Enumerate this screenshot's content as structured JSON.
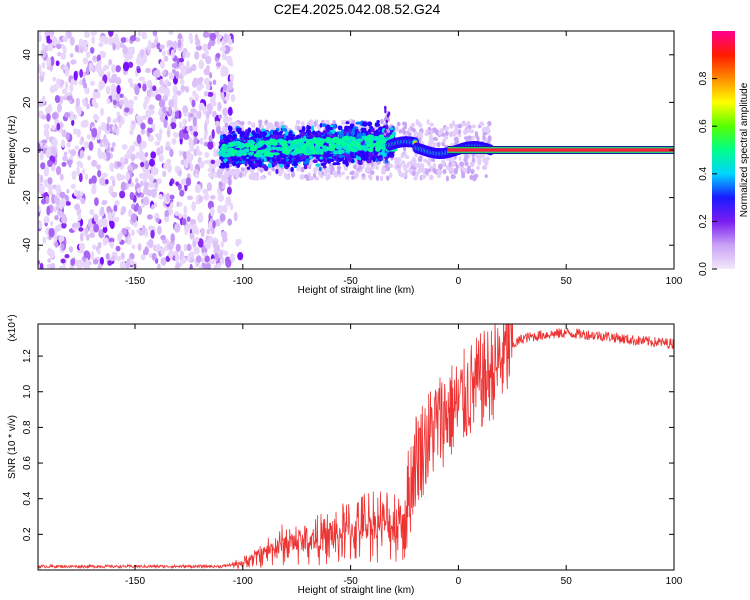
{
  "title": "C2E4.2025.042.08.52.G24",
  "chart_data": [
    {
      "type": "heatmap",
      "title": "C2E4.2025.042.08.52.G24",
      "xlabel": "Height of straight line (km)",
      "ylabel": "Frequency (Hz)",
      "xlim": [
        -195,
        100
      ],
      "ylim": [
        -50,
        50
      ],
      "x_ticks": [
        -150,
        -100,
        -50,
        0,
        50,
        100
      ],
      "y_ticks": [
        -40,
        -20,
        0,
        20,
        40
      ],
      "colorbar": {
        "label": "Normalized spectral amplitude",
        "range": [
          0.0,
          1.0
        ],
        "ticks": [
          "0.0",
          "0.2",
          "0.4",
          "0.6",
          "0.8"
        ],
        "colors": [
          "#f3e8fb",
          "#9b3cf0",
          "#3300ff",
          "#00c8ff",
          "#00ff66",
          "#b0ff00",
          "#ffff00",
          "#ff8800",
          "#ff0000",
          "#ff0088"
        ]
      },
      "features": [
        {
          "name": "broadband noise",
          "x_range": [
            -195,
            -105
          ],
          "freq_range": [
            -50,
            50
          ],
          "amplitude": "0.1-0.25"
        },
        {
          "name": "signal band",
          "x_range": [
            -110,
            -30
          ],
          "freq_center": 0,
          "bandwidth": 12,
          "amplitude": "0.3-0.5"
        },
        {
          "name": "carrier line",
          "x_range": [
            -25,
            100
          ],
          "freq_center": 0,
          "amplitude": "~0.9"
        }
      ]
    },
    {
      "type": "line",
      "xlabel": "Height of straight line (km)",
      "ylabel": "SNR (10 * v/v)",
      "y_multiplier": "(x10⁴)",
      "xlim": [
        -195,
        100
      ],
      "ylim": [
        0,
        1.38
      ],
      "x_ticks": [
        -150,
        -100,
        -50,
        0,
        50,
        100
      ],
      "y_ticks": [
        "0.2",
        "0.4",
        "0.6",
        "0.8",
        "1.0",
        "1.2"
      ],
      "color": "#ee3333",
      "profile": [
        {
          "x": -195,
          "y": 0.02
        },
        {
          "x": -110,
          "y": 0.02
        },
        {
          "x": -100,
          "y": 0.04
        },
        {
          "x": -90,
          "y": 0.1
        },
        {
          "x": -80,
          "y": 0.15
        },
        {
          "x": -70,
          "y": 0.16
        },
        {
          "x": -60,
          "y": 0.18
        },
        {
          "x": -50,
          "y": 0.22
        },
        {
          "x": -40,
          "y": 0.26
        },
        {
          "x": -30,
          "y": 0.26
        },
        {
          "x": -25,
          "y": 0.3
        },
        {
          "x": -20,
          "y": 0.62
        },
        {
          "x": -15,
          "y": 0.72
        },
        {
          "x": -10,
          "y": 0.82
        },
        {
          "x": -5,
          "y": 0.88
        },
        {
          "x": 0,
          "y": 0.92
        },
        {
          "x": 5,
          "y": 1.0
        },
        {
          "x": 10,
          "y": 1.05
        },
        {
          "x": 15,
          "y": 1.1
        },
        {
          "x": 20,
          "y": 1.18
        },
        {
          "x": 25,
          "y": 1.26
        },
        {
          "x": 30,
          "y": 1.3
        },
        {
          "x": 40,
          "y": 1.32
        },
        {
          "x": 50,
          "y": 1.33
        },
        {
          "x": 60,
          "y": 1.32
        },
        {
          "x": 70,
          "y": 1.31
        },
        {
          "x": 80,
          "y": 1.29
        },
        {
          "x": 90,
          "y": 1.28
        },
        {
          "x": 100,
          "y": 1.27
        }
      ]
    }
  ]
}
